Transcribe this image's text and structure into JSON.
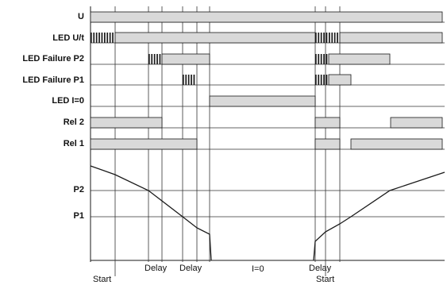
{
  "rows": [
    "U",
    "LED U/t",
    "LED Failure P2",
    "LED Failure P1",
    "LED I=0",
    "Rel 2",
    "Rel 1"
  ],
  "levels": [
    "P2",
    "P1"
  ],
  "bottom_labels": {
    "start1": "Start",
    "delay1": "Delay",
    "delay2": "Delay",
    "i0": "I=0",
    "delay3": "Delay",
    "start2": "Start"
  },
  "colors": {
    "bar": "#d9d9d9",
    "line": "#1a1a1a",
    "grid": "#333333"
  }
}
